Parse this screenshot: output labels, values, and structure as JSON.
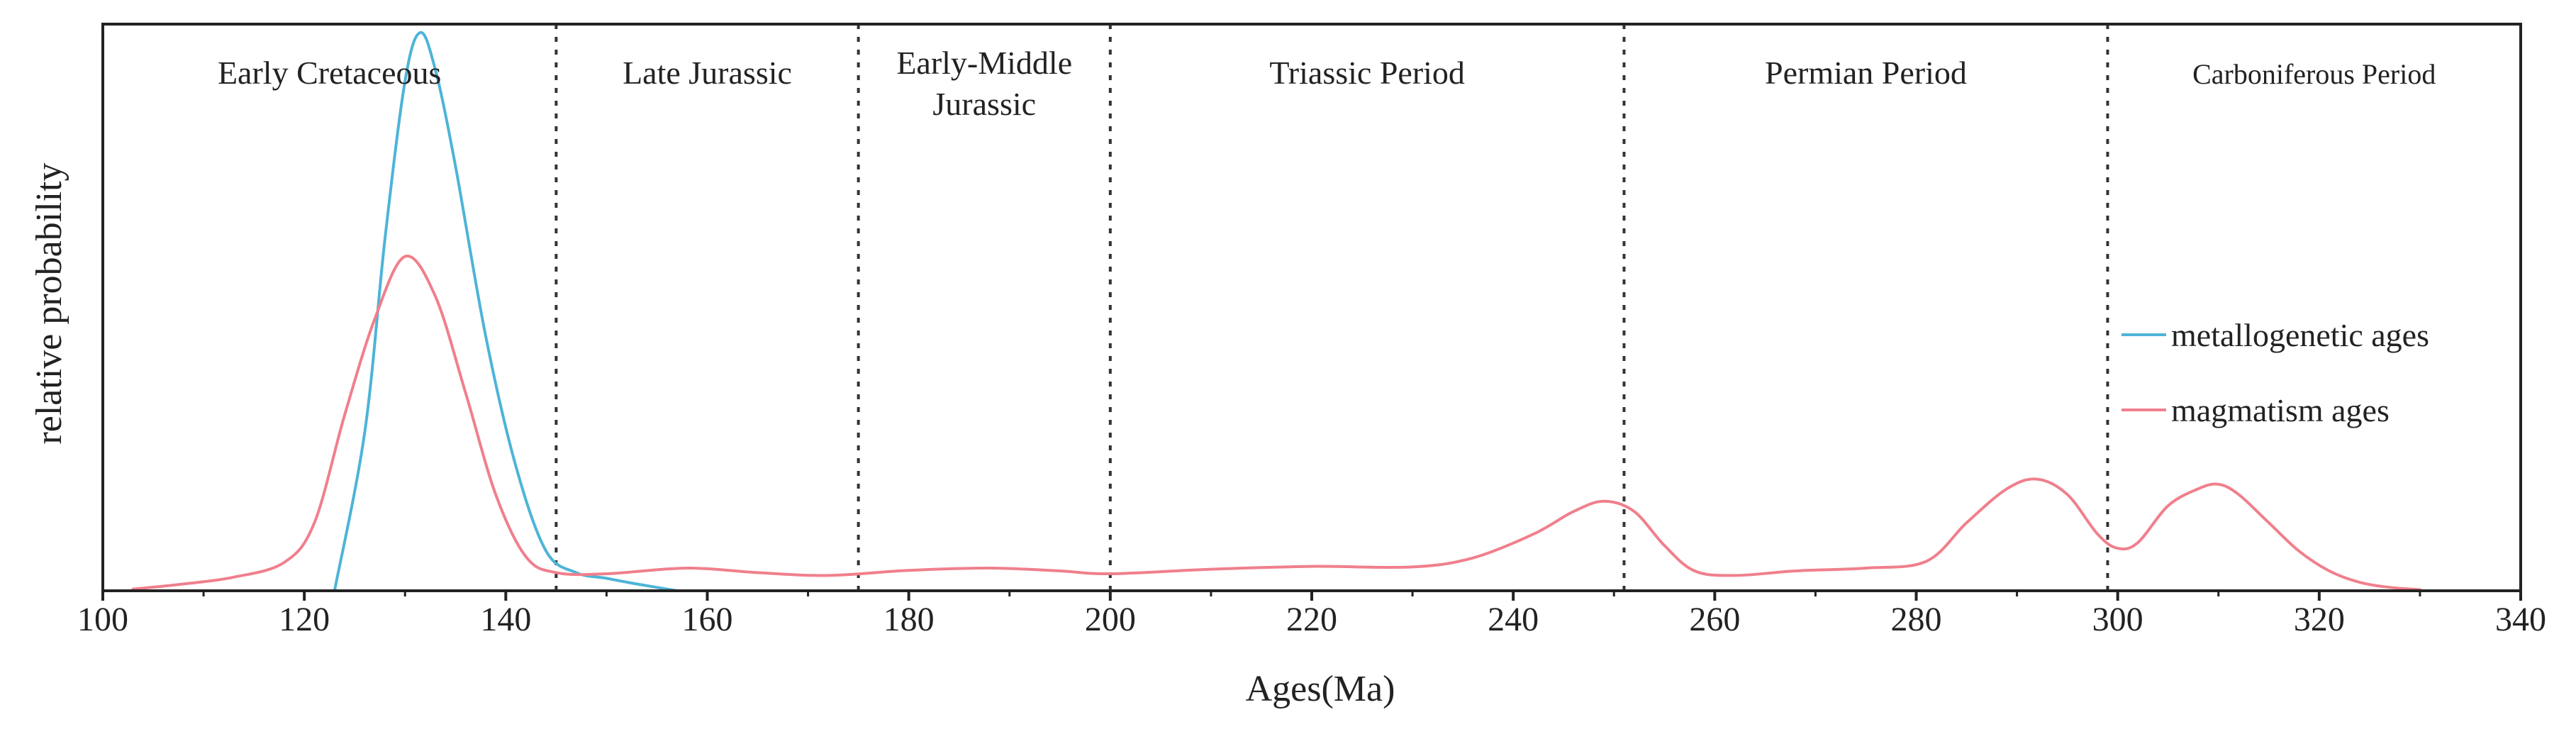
{
  "chart_data": {
    "type": "line",
    "title": "",
    "xlabel": "Ages(Ma)",
    "ylabel": "relative probability",
    "xlim": [
      100,
      340
    ],
    "ylim": [
      0,
      1
    ],
    "x_ticks": [
      100,
      120,
      140,
      160,
      180,
      200,
      220,
      240,
      260,
      280,
      300,
      320,
      340
    ],
    "x_tick_labels": [
      "100",
      "120",
      "140",
      "160",
      "180",
      "200",
      "220",
      "240",
      "260",
      "280",
      "300",
      "320",
      "340"
    ],
    "grid": false,
    "legend_position": "middle-right",
    "period_boundaries": [
      145,
      175,
      200,
      251,
      299
    ],
    "periods": [
      {
        "label": "Early Cretaceous",
        "x_range": [
          100,
          145
        ]
      },
      {
        "label": "Late Jurassic",
        "x_range": [
          145,
          175
        ]
      },
      {
        "label": "Early-Middle",
        "label_line2": "Jurassic",
        "x_range": [
          175,
          200
        ]
      },
      {
        "label": "Triassic Period",
        "x_range": [
          200,
          251
        ]
      },
      {
        "label": "Permian Period",
        "x_range": [
          251,
          299
        ]
      },
      {
        "label": "Carboniferous Period",
        "x_range": [
          299,
          340
        ]
      }
    ],
    "series": [
      {
        "name": "metallogenetic ages",
        "color": "#4db4d8",
        "x": [
          123,
          126,
          128,
          130,
          131.5,
          133,
          135,
          138,
          141,
          144,
          147,
          150,
          153,
          157
        ],
        "y": [
          0.0,
          0.28,
          0.62,
          0.9,
          0.985,
          0.92,
          0.75,
          0.45,
          0.22,
          0.07,
          0.032,
          0.022,
          0.012,
          0.0
        ]
      },
      {
        "name": "magmatism ages",
        "color": "#f07f8c",
        "x": [
          103,
          108,
          113,
          118,
          121,
          124,
          127,
          130,
          133,
          136,
          139,
          142,
          145,
          150,
          158,
          165,
          172,
          180,
          188,
          195,
          200,
          210,
          220,
          230,
          236,
          242,
          246,
          249,
          252,
          255,
          258,
          262,
          268,
          275,
          281,
          285,
          289,
          292,
          295,
          298,
          300,
          302,
          305,
          308,
          310,
          312,
          315,
          318,
          321,
          324,
          327,
          330
        ],
        "y": [
          0.003,
          0.012,
          0.024,
          0.05,
          0.12,
          0.31,
          0.48,
          0.59,
          0.52,
          0.35,
          0.17,
          0.06,
          0.032,
          0.03,
          0.04,
          0.032,
          0.027,
          0.036,
          0.04,
          0.035,
          0.03,
          0.038,
          0.043,
          0.042,
          0.058,
          0.1,
          0.14,
          0.158,
          0.14,
          0.08,
          0.035,
          0.027,
          0.035,
          0.04,
          0.052,
          0.12,
          0.18,
          0.197,
          0.17,
          0.1,
          0.075,
          0.085,
          0.15,
          0.18,
          0.188,
          0.17,
          0.12,
          0.07,
          0.035,
          0.015,
          0.006,
          0.002
        ]
      }
    ]
  }
}
